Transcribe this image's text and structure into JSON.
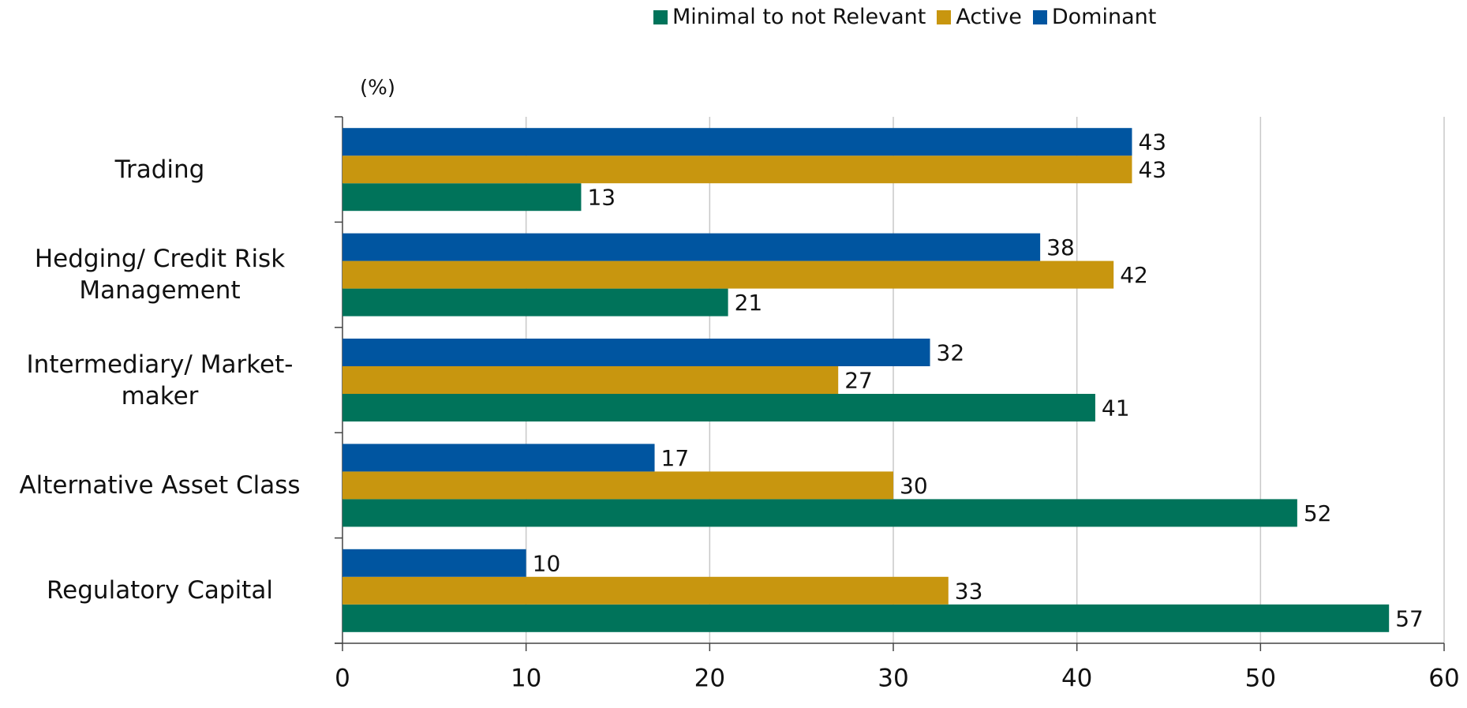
{
  "chart_data": {
    "type": "bar",
    "orientation": "horizontal",
    "unit_label": "(%)",
    "categories": [
      "Trading",
      "Hedging/ Credit Risk Management",
      "Intermediary/ Market-maker",
      "Alternative Asset Class",
      "Regulatory Capital"
    ],
    "series": [
      {
        "name": "Minimal to not Relevant",
        "color": "#00735a",
        "values": [
          13,
          21,
          41,
          52,
          57
        ]
      },
      {
        "name": "Active",
        "color": "#c8960f",
        "values": [
          43,
          42,
          27,
          30,
          33
        ]
      },
      {
        "name": "Dominant",
        "color": "#0055a0",
        "values": [
          43,
          38,
          32,
          17,
          10
        ]
      }
    ],
    "xlim": [
      0,
      60
    ],
    "xticks": [
      0,
      10,
      20,
      30,
      40,
      50,
      60
    ],
    "grid": true,
    "legend": "top"
  }
}
